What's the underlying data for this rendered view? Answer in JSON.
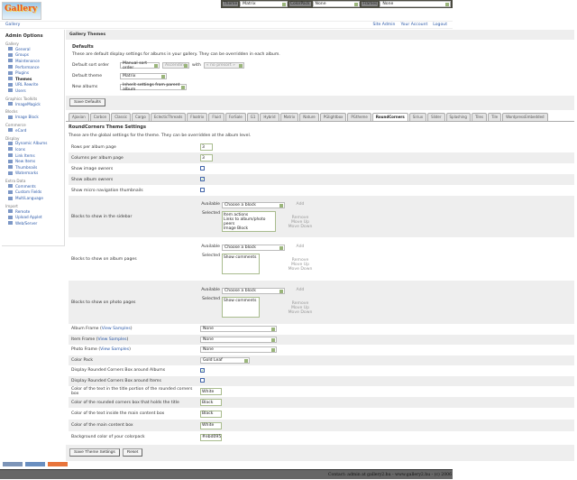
{
  "logo": "Gallery",
  "topbar": {
    "theme_label": "Theme",
    "theme": "Matrix",
    "colorpack_label": "ColorPack",
    "colorpack": "None",
    "frames_label": "Frames",
    "frames": "None"
  },
  "breadcrumb": "Gallery",
  "user_links": [
    "Site Admin",
    "Your Account",
    "Logout"
  ],
  "sidebar": {
    "title": "Admin Options",
    "groups": [
      {
        "name": "Gallery",
        "items": [
          "General",
          "Groups",
          "Maintenance",
          "Performance",
          "Plugins",
          "Themes",
          "URL Rewrite",
          "Users"
        ]
      },
      {
        "name": "Graphics Toolkits",
        "items": [
          "ImageMagick"
        ]
      },
      {
        "name": "Blocks",
        "items": [
          "Image Block"
        ]
      },
      {
        "name": "Commerce",
        "items": [
          "eCard"
        ]
      },
      {
        "name": "Display",
        "items": [
          "Dynamic Albums",
          "Icons",
          "Link Items",
          "New Items",
          "Thumbnails",
          "Watermarks"
        ]
      },
      {
        "name": "Extra Data",
        "items": [
          "Comments",
          "Custom Fields",
          "MultiLanguage"
        ]
      },
      {
        "name": "Import",
        "items": [
          "Remote",
          "Upload Applet",
          "Web/Server"
        ]
      }
    ]
  },
  "page_title": "Gallery Themes",
  "defaults": {
    "heading": "Defaults",
    "description": "These are default display settings for albums in your gallery. They can be overridden in each album.",
    "sort_label": "Default sort order",
    "sort": "Manual sort order",
    "direction": "Ascending",
    "with_label": "with",
    "presort": "« no presort »",
    "theme_label": "Default theme",
    "theme": "Matrix",
    "new_albums_label": "New albums",
    "new_albums": "Inherit settings from parent album",
    "save": "Save Defaults"
  },
  "tabs": [
    "Ajaxian",
    "Carbon",
    "Classic",
    "Cargo",
    "EclecticThreads",
    "Floatrix",
    "Fluid",
    "ForSale",
    "G1",
    "Hybrid",
    "Matrix",
    "Nature",
    "PGlightbox",
    "PGtheme",
    "RoundCorners",
    "Siriux",
    "Slider",
    "Splashing",
    "Tiles",
    "Tile",
    "WordpressEmbedded"
  ],
  "active_tab": "RoundCorners",
  "settings": {
    "heading": "RoundCorners Theme Settings",
    "description": "These are the global settings for the theme. They can be overridden at the album level.",
    "rows_label": "Rows per album page",
    "rows": "3",
    "cols_label": "Columns per album page",
    "cols": "3",
    "image_owners_label": "Show image owners",
    "album_owners_label": "Show album owners",
    "micro_label": "Show micro navigation thumbnails",
    "available": "Available",
    "selected": "Selected",
    "choose": "Choose a block",
    "add": "Add",
    "remove": "Remove",
    "move_up": "Move Up",
    "move_down": "Move Down",
    "sidebar_label": "Blocks to show in the sidebar",
    "sidebar_selected": [
      "Item actions",
      "Links to album/photo peers",
      "Image Block"
    ],
    "album_label": "Blocks to show on album pages",
    "album_selected": [
      "Show comments"
    ],
    "photo_label": "Blocks to show on photo pages",
    "photo_selected": [
      "Show comments"
    ],
    "view_samples": "View Samples",
    "album_frame_label": "Album Frame",
    "album_frame": "None",
    "item_frame_label": "Item Frame",
    "item_frame": "None",
    "photo_frame_label": "Photo Frame",
    "photo_frame": "None",
    "color_pack_label": "Color Pack",
    "color_pack": "Gold Leaf",
    "rc_albums_label": "Display Rounded Corners Box around Albums",
    "rc_items_label": "Display Rounded Corners Box around Items",
    "title_text_label": "Color of the text in the title portion of the rounded corners box",
    "title_text": "White",
    "title_box_label": "Color of the rounded corners box that holds the title",
    "title_box": "Black",
    "content_text_label": "Color of the text inside the main content box",
    "content_text": "Black",
    "content_box_label": "Color of the main content box",
    "content_box": "White",
    "bg_label": "Background color of your colorpack",
    "bg": "#ebd095",
    "save": "Save Theme Settings",
    "reset": "Reset"
  },
  "checkboxes": {
    "image_owners": false,
    "album_owners": true,
    "micro": false,
    "rc_albums": true,
    "rc_items": false
  },
  "footer": "Contact: admin at gallery2.hu - www.gallery2.hu - (c) 2006"
}
